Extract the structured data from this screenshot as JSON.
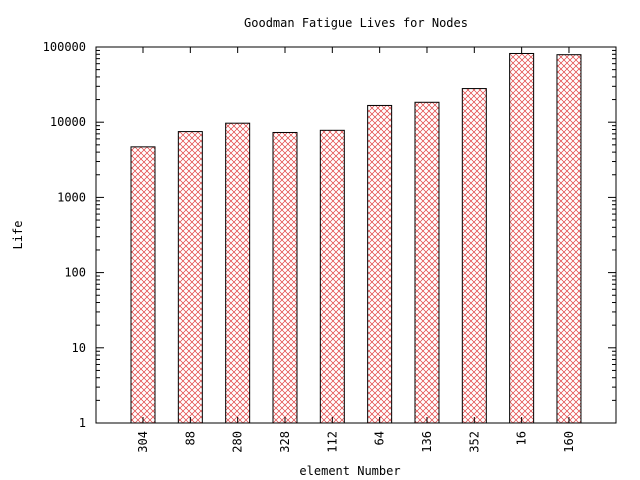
{
  "chart_data": {
    "type": "bar",
    "title": "Goodman Fatigue Lives for Nodes",
    "xlabel": "element Number",
    "ylabel": "Life",
    "yscale": "log",
    "ylim": [
      1,
      100000
    ],
    "yticks": [
      1,
      10,
      100,
      1000,
      10000,
      100000
    ],
    "ytick_labels": [
      "1",
      "10",
      "100",
      "1000",
      "10000",
      "100000"
    ],
    "categories": [
      "304",
      "88",
      "280",
      "328",
      "112",
      "64",
      "136",
      "352",
      "16",
      "160"
    ],
    "values": [
      4700,
      7500,
      9700,
      7300,
      7800,
      16700,
      18400,
      28000,
      82000,
      79000
    ],
    "grid": false,
    "bar_style": "crosshatch",
    "colors": {
      "bar_hatch": "#e04040",
      "bar_border": "#000000",
      "axis": "#000000"
    }
  }
}
